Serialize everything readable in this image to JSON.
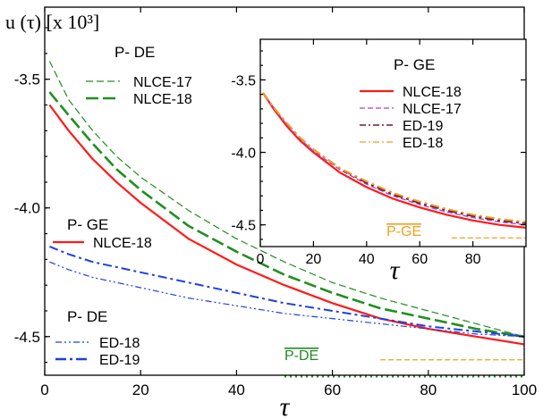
{
  "y_axis_label": "u (τ) [x 10³]",
  "colors": {
    "nlce17_green": "#228B22",
    "nlce18_green": "#1f8f1f",
    "red": "#ff1a1a",
    "blue": "#1f3fe0",
    "purple": "#b03ad6",
    "maroon": "#6e1a3a",
    "orange": "#f0a020"
  },
  "chart_data": [
    {
      "id": "main",
      "type": "line",
      "xlabel": "τ",
      "ylabel": "u (τ) [x 10³]",
      "xlim": [
        0,
        100
      ],
      "ylim": [
        -4.65,
        -3.22
      ],
      "xticks": [
        "0",
        "20",
        "40",
        "60",
        "80",
        "100"
      ],
      "yticks": [
        "-3.5",
        "-4.0",
        "-4.5"
      ],
      "legends": [
        {
          "title": "P- DE",
          "entries": [
            "NLCE-17",
            "NLCE-18"
          ]
        },
        {
          "title": "P- GE",
          "entries": [
            "NLCE-18"
          ]
        },
        {
          "title": "P- DE",
          "entries": [
            "ED-18",
            "ED-19"
          ]
        }
      ],
      "series": [
        {
          "name": "NLCE-17",
          "group": "P- DE",
          "style": "dashed-thin",
          "color": "#228B22",
          "x": [
            1,
            5,
            10,
            15,
            20,
            30,
            40,
            50,
            60,
            70,
            80,
            90,
            100
          ],
          "y": [
            -3.43,
            -3.58,
            -3.7,
            -3.8,
            -3.88,
            -4.01,
            -4.12,
            -4.21,
            -4.29,
            -4.35,
            -4.4,
            -4.45,
            -4.5
          ]
        },
        {
          "name": "NLCE-18",
          "group": "P- DE",
          "style": "dashed-thick",
          "color": "#1f8f1f",
          "x": [
            1,
            5,
            10,
            15,
            20,
            30,
            40,
            50,
            60,
            70,
            80,
            90,
            100
          ],
          "y": [
            -3.55,
            -3.64,
            -3.75,
            -3.85,
            -3.93,
            -4.07,
            -4.17,
            -4.26,
            -4.33,
            -4.39,
            -4.43,
            -4.47,
            -4.5
          ]
        },
        {
          "name": "NLCE-18",
          "group": "P- GE",
          "style": "solid",
          "color": "#ff1a1a",
          "x": [
            1,
            5,
            10,
            15,
            20,
            30,
            40,
            50,
            60,
            70,
            80,
            90,
            100
          ],
          "y": [
            -3.6,
            -3.7,
            -3.81,
            -3.9,
            -3.98,
            -4.12,
            -4.22,
            -4.3,
            -4.37,
            -4.43,
            -4.47,
            -4.5,
            -4.53
          ]
        },
        {
          "name": "ED-18",
          "group": "P- DE",
          "style": "dashdotdot",
          "color": "#1f3fe0",
          "x": [
            1,
            5,
            10,
            20,
            30,
            40,
            50,
            60,
            70,
            80,
            90,
            100
          ],
          "y": [
            -4.21,
            -4.24,
            -4.27,
            -4.31,
            -4.35,
            -4.38,
            -4.41,
            -4.43,
            -4.45,
            -4.47,
            -4.49,
            -4.5
          ]
        },
        {
          "name": "ED-19",
          "group": "P- DE",
          "style": "dashdot",
          "color": "#1f3fe0",
          "x": [
            1,
            5,
            10,
            20,
            30,
            40,
            50,
            60,
            70,
            80,
            90,
            100
          ],
          "y": [
            -4.15,
            -4.18,
            -4.21,
            -4.25,
            -4.29,
            -4.33,
            -4.37,
            -4.4,
            -4.43,
            -4.46,
            -4.48,
            -4.5
          ]
        }
      ],
      "reference_lines": [
        {
          "label": "P-DE",
          "overline": true,
          "color": "#228B22",
          "style": "dotted",
          "y": -4.655,
          "x_range": [
            50,
            100
          ]
        },
        {
          "label": "P-GE",
          "overline": true,
          "color": "#f0a020",
          "style": "dashed",
          "y": -4.59,
          "x_range": [
            70,
            100
          ]
        }
      ]
    },
    {
      "id": "inset",
      "type": "line",
      "xlabel": "τ",
      "xlim": [
        0,
        100
      ],
      "ylim": [
        -4.65,
        -3.22
      ],
      "xticks": [
        "0",
        "20",
        "40",
        "60",
        "80"
      ],
      "yticks": [
        "-3.5",
        "-4.0",
        "-4.5"
      ],
      "legend": {
        "title": "P- GE",
        "entries": [
          "NLCE-18",
          "NLCE-17",
          "ED-19",
          "ED-18"
        ]
      },
      "series": [
        {
          "name": "NLCE-18",
          "style": "solid",
          "color": "#ff1a1a",
          "x": [
            1,
            5,
            10,
            15,
            20,
            30,
            40,
            50,
            60,
            70,
            80,
            90,
            100
          ],
          "y": [
            -3.59,
            -3.7,
            -3.82,
            -3.92,
            -4.0,
            -4.14,
            -4.24,
            -4.32,
            -4.38,
            -4.43,
            -4.47,
            -4.5,
            -4.52
          ]
        },
        {
          "name": "NLCE-17",
          "style": "dashed",
          "color": "#b03ad6",
          "x": [
            1,
            5,
            10,
            15,
            20,
            30,
            40,
            50,
            60,
            70,
            80,
            90,
            100
          ],
          "y": [
            -3.59,
            -3.69,
            -3.81,
            -3.91,
            -3.99,
            -4.12,
            -4.22,
            -4.3,
            -4.36,
            -4.41,
            -4.45,
            -4.48,
            -4.5
          ]
        },
        {
          "name": "ED-19",
          "style": "dashdot",
          "color": "#6e1a3a",
          "x": [
            1,
            5,
            10,
            15,
            20,
            30,
            40,
            50,
            60,
            70,
            80,
            90,
            100
          ],
          "y": [
            -3.59,
            -3.69,
            -3.8,
            -3.9,
            -3.98,
            -4.11,
            -4.21,
            -4.29,
            -4.35,
            -4.4,
            -4.44,
            -4.47,
            -4.49
          ]
        },
        {
          "name": "ED-18",
          "style": "dashdot",
          "color": "#f0a020",
          "x": [
            1,
            5,
            10,
            15,
            20,
            30,
            40,
            50,
            60,
            70,
            80,
            90,
            100
          ],
          "y": [
            -3.59,
            -3.69,
            -3.8,
            -3.9,
            -3.98,
            -4.11,
            -4.2,
            -4.28,
            -4.34,
            -4.39,
            -4.43,
            -4.46,
            -4.48
          ]
        }
      ],
      "reference_lines": [
        {
          "label": "P-GE",
          "overline": true,
          "color": "#f0a020",
          "style": "dashed",
          "y": -4.59,
          "x_range": [
            72,
            100
          ]
        }
      ]
    }
  ]
}
